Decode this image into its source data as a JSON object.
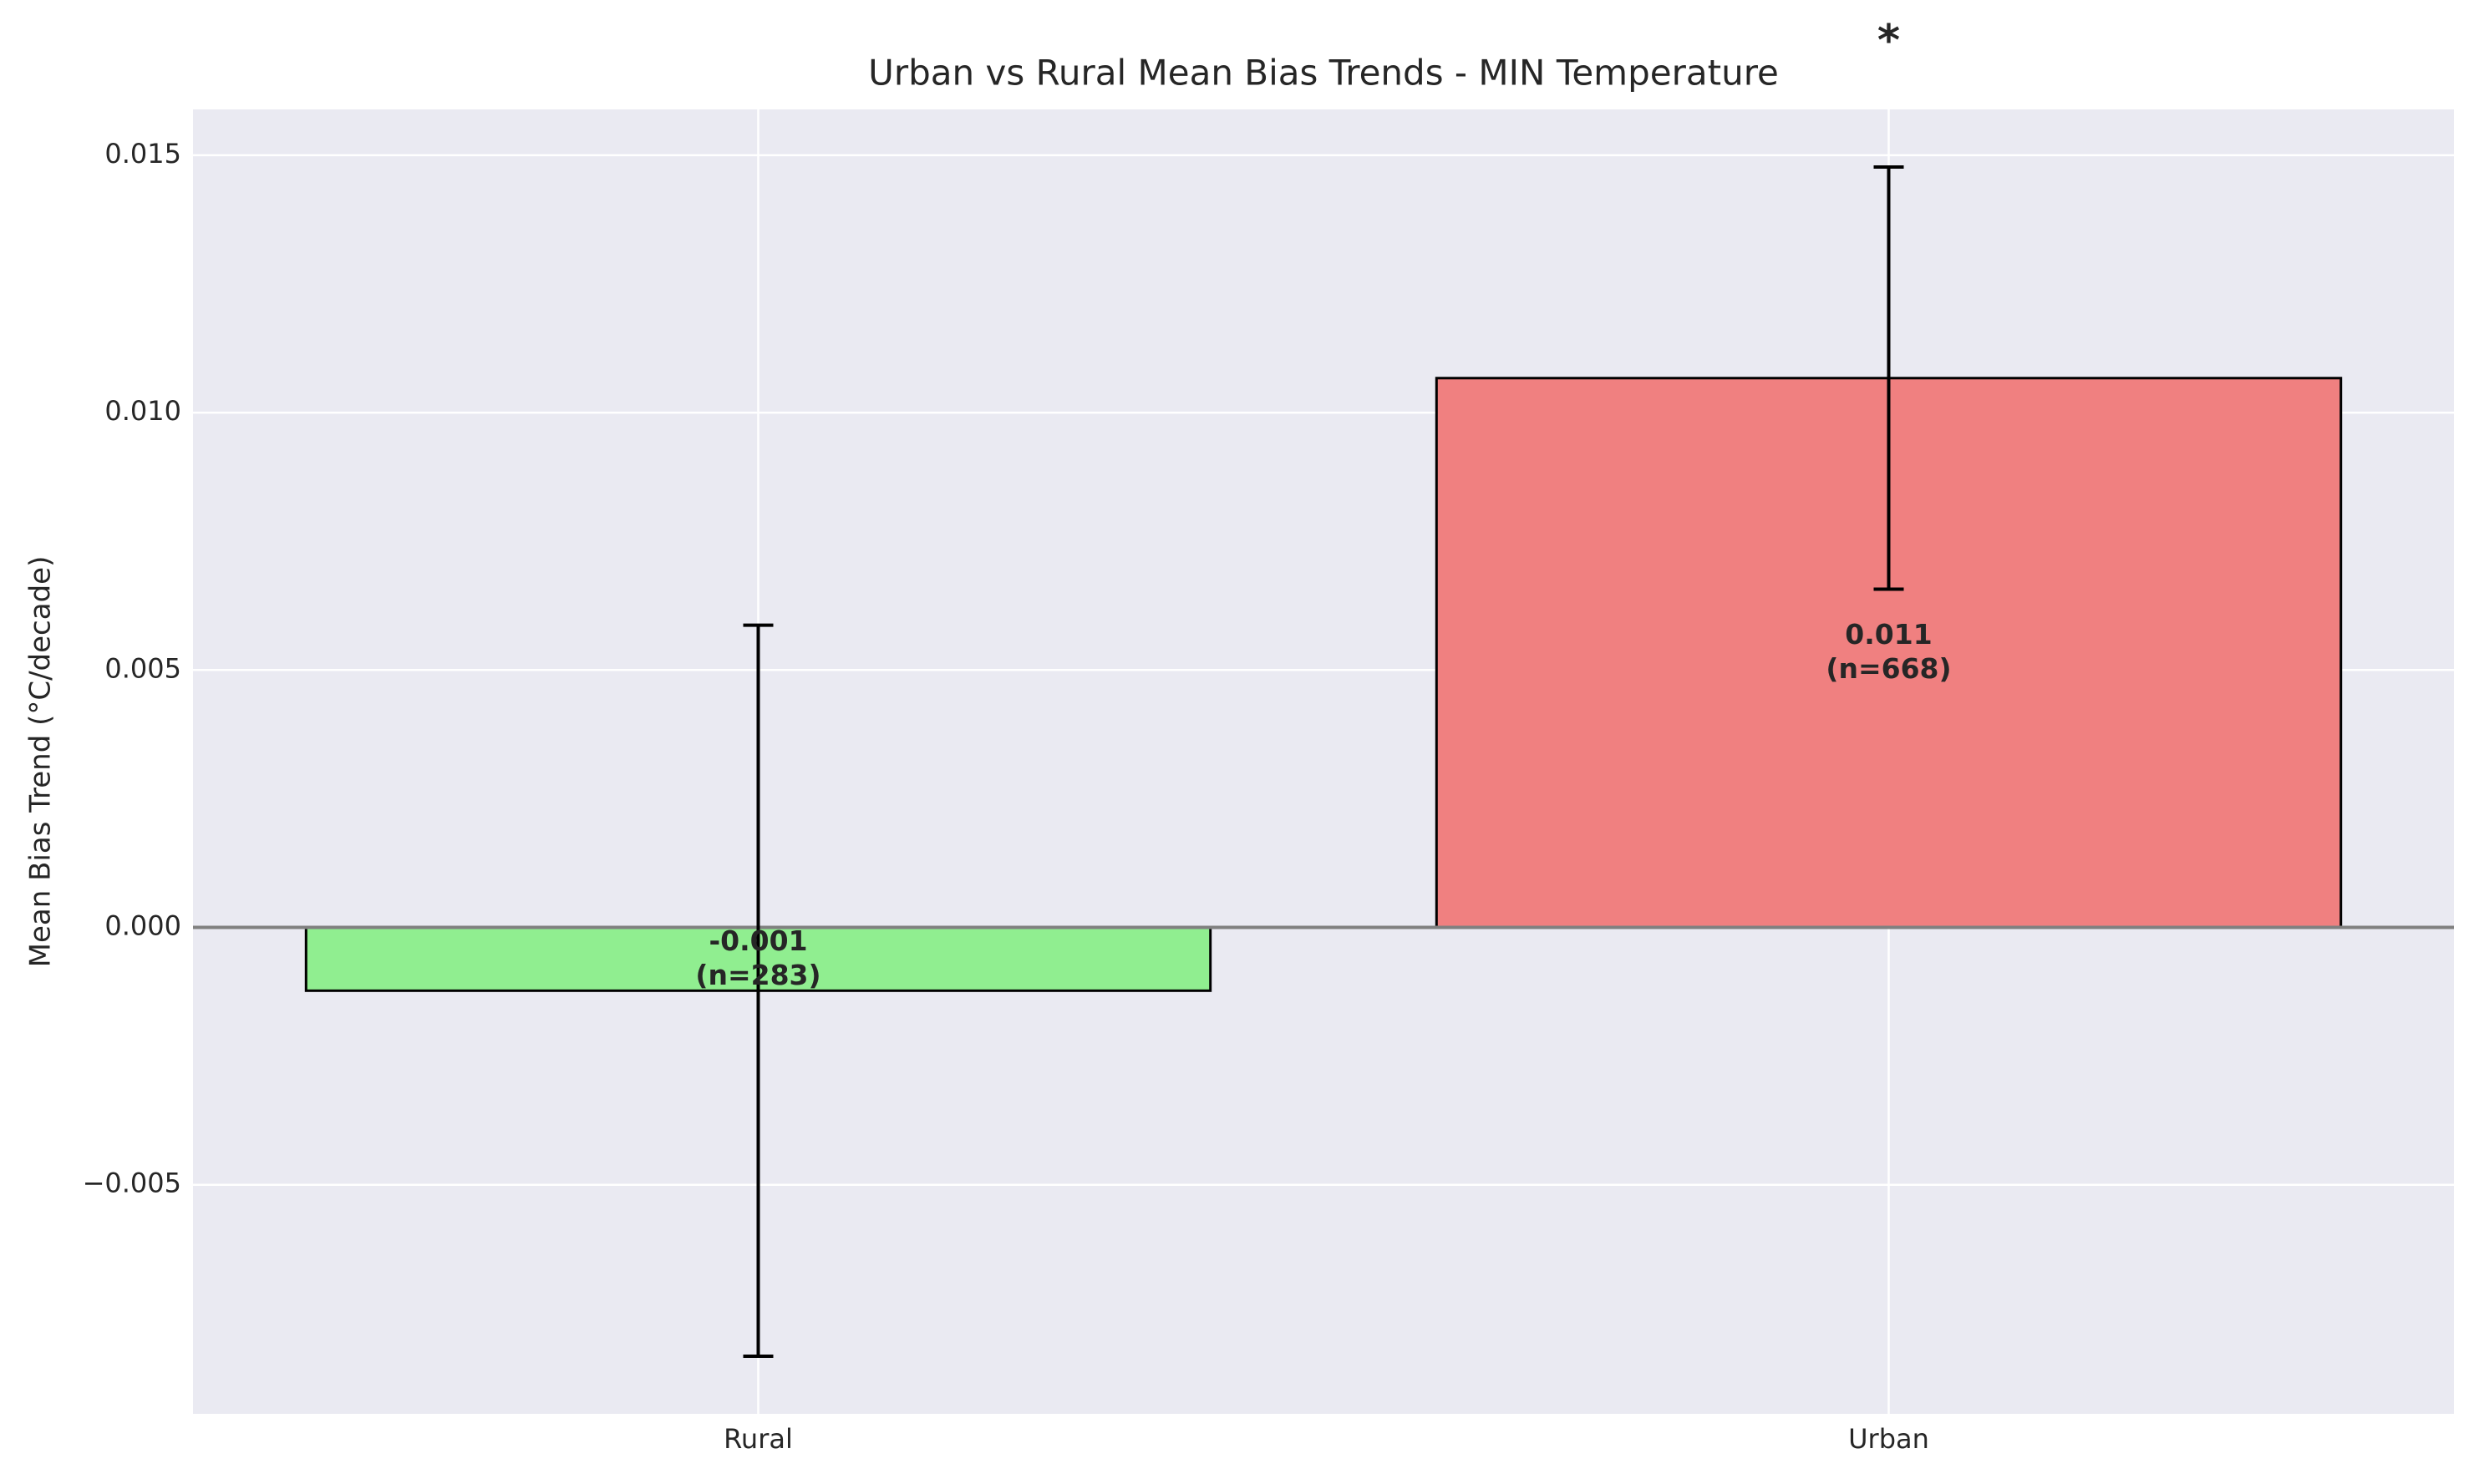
{
  "chart_data": {
    "type": "bar",
    "title": "Urban vs Rural Mean Bias Trends - MIN Temperature",
    "ylabel": "Mean Bias Trend (°C/decade)",
    "categories": [
      "Rural",
      "Urban"
    ],
    "values": [
      -0.00123,
      0.01067
    ],
    "errors": [
      0.0071,
      0.0041
    ],
    "colors": [
      "#90ee90",
      "#f08080"
    ],
    "value_labels": [
      "-0.001",
      "0.011"
    ],
    "count_labels": [
      "(n=283)",
      "(n=668)"
    ],
    "significance": [
      null,
      "*"
    ],
    "ylim": [
      -0.00945,
      0.01589
    ],
    "yticks": [
      {
        "value": -0.005,
        "label": "−0.005"
      },
      {
        "value": 0,
        "label": "0.000"
      },
      0.005,
      {
        "value": 0.01,
        "label": "0.010"
      },
      0.015
    ],
    "grid": true,
    "zero_line": true
  }
}
